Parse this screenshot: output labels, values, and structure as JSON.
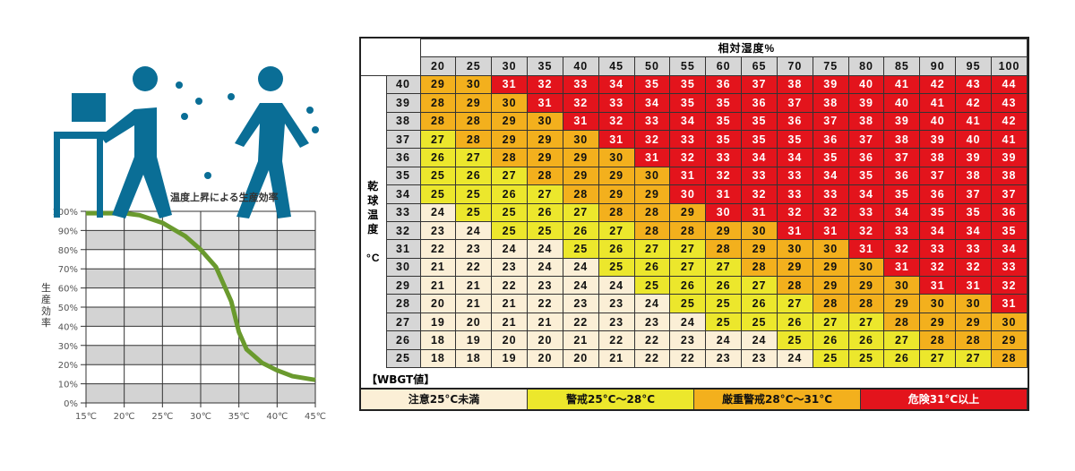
{
  "chart_data": [
    {
      "type": "line",
      "title": "温度上昇による生産効率",
      "xlabel": "",
      "ylabel": "生産効率",
      "x": [
        15,
        20,
        25,
        30,
        35,
        40,
        45
      ],
      "x_tick_labels": [
        "15℃",
        "20℃",
        "25℃",
        "30℃",
        "35℃",
        "40℃",
        "45℃"
      ],
      "y_tick_labels": [
        "0%",
        "10%",
        "20%",
        "30%",
        "40%",
        "50%",
        "60%",
        "70%",
        "80%",
        "90%",
        "100%"
      ],
      "series": [
        {
          "name": "生産効率",
          "x": [
            15,
            18,
            20,
            22,
            25,
            28,
            30,
            32,
            34,
            35,
            36,
            38,
            40,
            42,
            45
          ],
          "values": [
            99,
            99,
            99,
            98,
            94,
            87,
            80,
            71,
            53,
            37,
            28,
            21,
            17,
            14,
            12
          ]
        }
      ],
      "ylim": [
        0,
        100
      ],
      "xlim": [
        15,
        45
      ],
      "grid": true,
      "line_color": "#6a9a2e"
    },
    {
      "type": "table",
      "title": "相対湿度%",
      "row_header_label": "乾球温度 °C",
      "columns": [
        20,
        25,
        30,
        35,
        40,
        45,
        50,
        55,
        60,
        65,
        70,
        75,
        80,
        85,
        90,
        95,
        100
      ],
      "rows": [
        {
          "t": 40,
          "v": [
            29,
            30,
            31,
            32,
            33,
            34,
            35,
            35,
            36,
            37,
            38,
            39,
            40,
            41,
            42,
            43,
            44
          ]
        },
        {
          "t": 39,
          "v": [
            28,
            29,
            30,
            31,
            32,
            33,
            34,
            35,
            35,
            36,
            37,
            38,
            39,
            40,
            41,
            42,
            43
          ]
        },
        {
          "t": 38,
          "v": [
            28,
            28,
            29,
            30,
            31,
            32,
            33,
            34,
            35,
            35,
            36,
            37,
            38,
            39,
            40,
            41,
            42
          ]
        },
        {
          "t": 37,
          "v": [
            27,
            28,
            29,
            29,
            30,
            31,
            32,
            33,
            35,
            35,
            35,
            36,
            37,
            38,
            39,
            40,
            41
          ]
        },
        {
          "t": 36,
          "v": [
            26,
            27,
            28,
            29,
            29,
            30,
            31,
            32,
            33,
            34,
            34,
            35,
            36,
            37,
            38,
            39,
            39
          ]
        },
        {
          "t": 35,
          "v": [
            25,
            26,
            27,
            28,
            29,
            29,
            30,
            31,
            32,
            33,
            33,
            34,
            35,
            36,
            37,
            38,
            38
          ]
        },
        {
          "t": 34,
          "v": [
            25,
            25,
            26,
            27,
            28,
            29,
            29,
            30,
            31,
            32,
            33,
            33,
            34,
            35,
            36,
            37,
            37
          ]
        },
        {
          "t": 33,
          "v": [
            24,
            25,
            25,
            26,
            27,
            28,
            28,
            29,
            30,
            31,
            32,
            32,
            33,
            34,
            35,
            35,
            36
          ]
        },
        {
          "t": 32,
          "v": [
            23,
            24,
            25,
            25,
            26,
            27,
            28,
            28,
            29,
            30,
            31,
            31,
            32,
            33,
            34,
            34,
            35
          ]
        },
        {
          "t": 31,
          "v": [
            22,
            23,
            24,
            24,
            25,
            26,
            27,
            27,
            28,
            29,
            30,
            30,
            31,
            32,
            33,
            33,
            34
          ]
        },
        {
          "t": 30,
          "v": [
            21,
            22,
            23,
            24,
            24,
            25,
            26,
            27,
            27,
            28,
            29,
            29,
            30,
            31,
            32,
            32,
            33
          ]
        },
        {
          "t": 29,
          "v": [
            21,
            21,
            22,
            23,
            24,
            24,
            25,
            26,
            26,
            27,
            28,
            29,
            29,
            30,
            31,
            31,
            32
          ]
        },
        {
          "t": 28,
          "v": [
            20,
            21,
            21,
            22,
            23,
            23,
            24,
            25,
            25,
            26,
            27,
            28,
            28,
            29,
            30,
            30,
            31
          ]
        },
        {
          "t": 27,
          "v": [
            19,
            20,
            21,
            21,
            22,
            23,
            23,
            24,
            25,
            25,
            26,
            27,
            27,
            28,
            29,
            29,
            30
          ]
        },
        {
          "t": 26,
          "v": [
            18,
            19,
            20,
            20,
            21,
            22,
            22,
            23,
            24,
            24,
            25,
            26,
            26,
            27,
            28,
            28,
            29
          ]
        },
        {
          "t": 25,
          "v": [
            18,
            18,
            19,
            20,
            20,
            21,
            22,
            22,
            23,
            23,
            24,
            25,
            25,
            26,
            27,
            27,
            28
          ]
        }
      ],
      "red_exceptions": [
        [
          34,
          55
        ],
        [
          33,
          60
        ]
      ]
    }
  ],
  "wbgt_label": "【WBGT値】",
  "legend": [
    {
      "label": "注意25°C未満",
      "color": "#fbefd6"
    },
    {
      "label": "警戒25°C～28°C",
      "color": "#ece72c"
    },
    {
      "label": "厳重警戒28°C～31°C",
      "color": "#f3b01d"
    },
    {
      "label": "危険31°C以上",
      "color": "#e3141c"
    }
  ]
}
